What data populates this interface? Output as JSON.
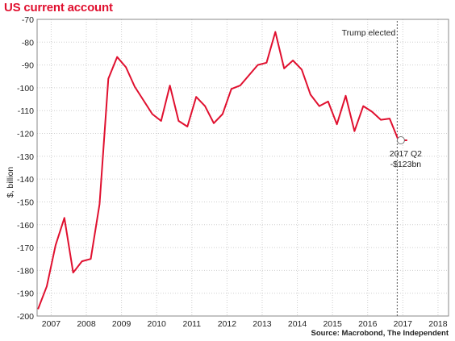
{
  "chart_data": {
    "type": "line",
    "title": "US current account",
    "ylabel": "$, billion",
    "xlabel": "",
    "ylim": [
      -200,
      -70
    ],
    "yticks": [
      -70,
      -80,
      -90,
      -100,
      -110,
      -120,
      -130,
      -140,
      -150,
      -160,
      -170,
      -180,
      -190,
      -200
    ],
    "xlim": [
      2006.6,
      2018.3
    ],
    "xticks": [
      2007,
      2008,
      2009,
      2010,
      2011,
      2012,
      2013,
      2014,
      2015,
      2016,
      2017,
      2018
    ],
    "grid": true,
    "series": [
      {
        "color": "#e0102f",
        "x": [
          2006.625,
          2006.875,
          2007.125,
          2007.375,
          2007.625,
          2007.875,
          2008.125,
          2008.375,
          2008.625,
          2008.875,
          2009.125,
          2009.375,
          2009.625,
          2009.875,
          2010.125,
          2010.375,
          2010.625,
          2010.875,
          2011.125,
          2011.375,
          2011.625,
          2011.875,
          2012.125,
          2012.375,
          2012.625,
          2012.875,
          2013.125,
          2013.375,
          2013.625,
          2013.875,
          2014.125,
          2014.375,
          2014.625,
          2014.875,
          2015.125,
          2015.375,
          2015.625,
          2015.875,
          2016.125,
          2016.375,
          2016.625,
          2016.875,
          2017.125
        ],
        "values": [
          -197,
          -187,
          -169,
          -157,
          -181,
          -176,
          -175,
          -151,
          -96,
          -86.5,
          -91,
          -99.5,
          -105.5,
          -111.5,
          -114.5,
          -99,
          -114.5,
          -117,
          -104,
          -108,
          -115.5,
          -111.5,
          -100.5,
          -99,
          -94.5,
          -90,
          -89,
          -75.5,
          -91.5,
          -88,
          -92,
          -103,
          -108,
          -106,
          -116,
          -103.5,
          -119,
          -108,
          -110.5,
          -114,
          -113.5,
          -123,
          -123
        ]
      }
    ],
    "annotations": [
      {
        "text": "Trump elected",
        "x": 2016.84,
        "style": "dashed-vertical"
      },
      {
        "text": "2017 Q2",
        "text2": "-$123bn",
        "x": 2016.875,
        "y": -123,
        "style": "circle-marker"
      }
    ],
    "source": "Source: Macrobond, The Independent"
  }
}
